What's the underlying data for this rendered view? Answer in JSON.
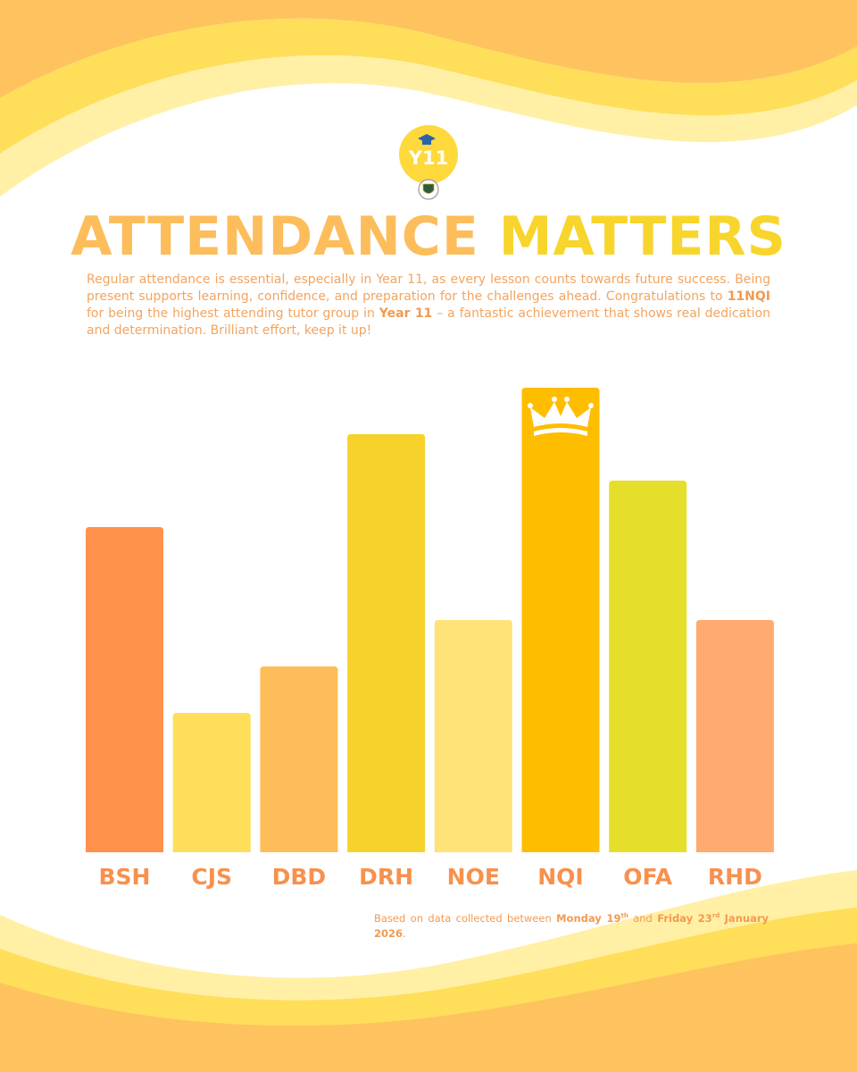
{
  "logo": {
    "label": "Y11"
  },
  "headline": {
    "part1": "ATTENDANCE",
    "part2": "MATTERS"
  },
  "intro": {
    "text1": "Regular attendance is essential, especially in Year 11, as every lesson counts towards future success. Being present supports learning, confidence, and preparation for the challenges ahead. Congratulations to ",
    "highlight1": "11NQI",
    "text2": " for being the highest attending tutor group in ",
    "highlight2": "Year 11",
    "text3": " – a fantastic achievement that shows real dedication and determination. Brilliant effort, keep it up!"
  },
  "chart_data": {
    "type": "bar",
    "categories": [
      "BSH",
      "CJS",
      "DBD",
      "DRH",
      "NOE",
      "NQI",
      "OFA",
      "RHD"
    ],
    "values": [
      7,
      3,
      4,
      9,
      5,
      10,
      8,
      5
    ],
    "ylim": [
      0,
      10
    ],
    "highest": "NQI",
    "bar_colors": [
      "#ff914d",
      "#ffde59",
      "#ffbd59",
      "#f7d22a",
      "#ffe278",
      "#ffbd00",
      "#e5df2c",
      "#ffaa70"
    ],
    "label_color": "#f7914d",
    "highest_marker": "crown-icon"
  },
  "footnote": {
    "text1": "Based on data collected between ",
    "start_day": "Monday 19",
    "start_sup": "th",
    "text2": " and ",
    "end_day": "Friday 23",
    "end_sup": "rd",
    "text3": " ",
    "end_month": "January 2026",
    "text4": "."
  },
  "colors": {
    "accent_orange": "#fdbd5b",
    "accent_yellow": "#f8d52c",
    "text_orange": "#f3a45f"
  }
}
